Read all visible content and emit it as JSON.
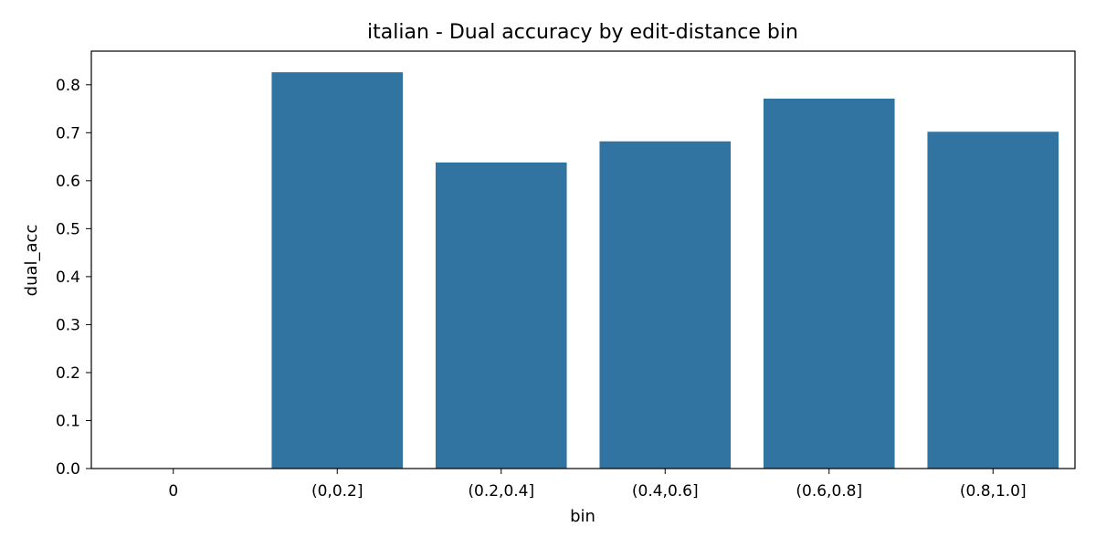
{
  "chart_data": {
    "type": "bar",
    "title": "italian - Dual accuracy by edit-distance bin",
    "xlabel": "bin",
    "ylabel": "dual_acc",
    "categories": [
      "0",
      "(0,0.2]",
      "(0.2,0.4]",
      "(0.4,0.6]",
      "(0.6,0.8]",
      "(0.8,1.0]"
    ],
    "values": [
      null,
      0.826,
      0.638,
      0.682,
      0.771,
      0.702
    ],
    "ylim": [
      0,
      0.87
    ],
    "yticks": [
      0.0,
      0.1,
      0.2,
      0.3,
      0.4,
      0.5,
      0.6,
      0.7,
      0.8
    ],
    "ytick_labels": [
      "0.0",
      "0.1",
      "0.2",
      "0.3",
      "0.4",
      "0.5",
      "0.6",
      "0.7",
      "0.8"
    ],
    "grid": false,
    "colors": {
      "bar": "#3274a1",
      "axis": "#000000"
    }
  }
}
